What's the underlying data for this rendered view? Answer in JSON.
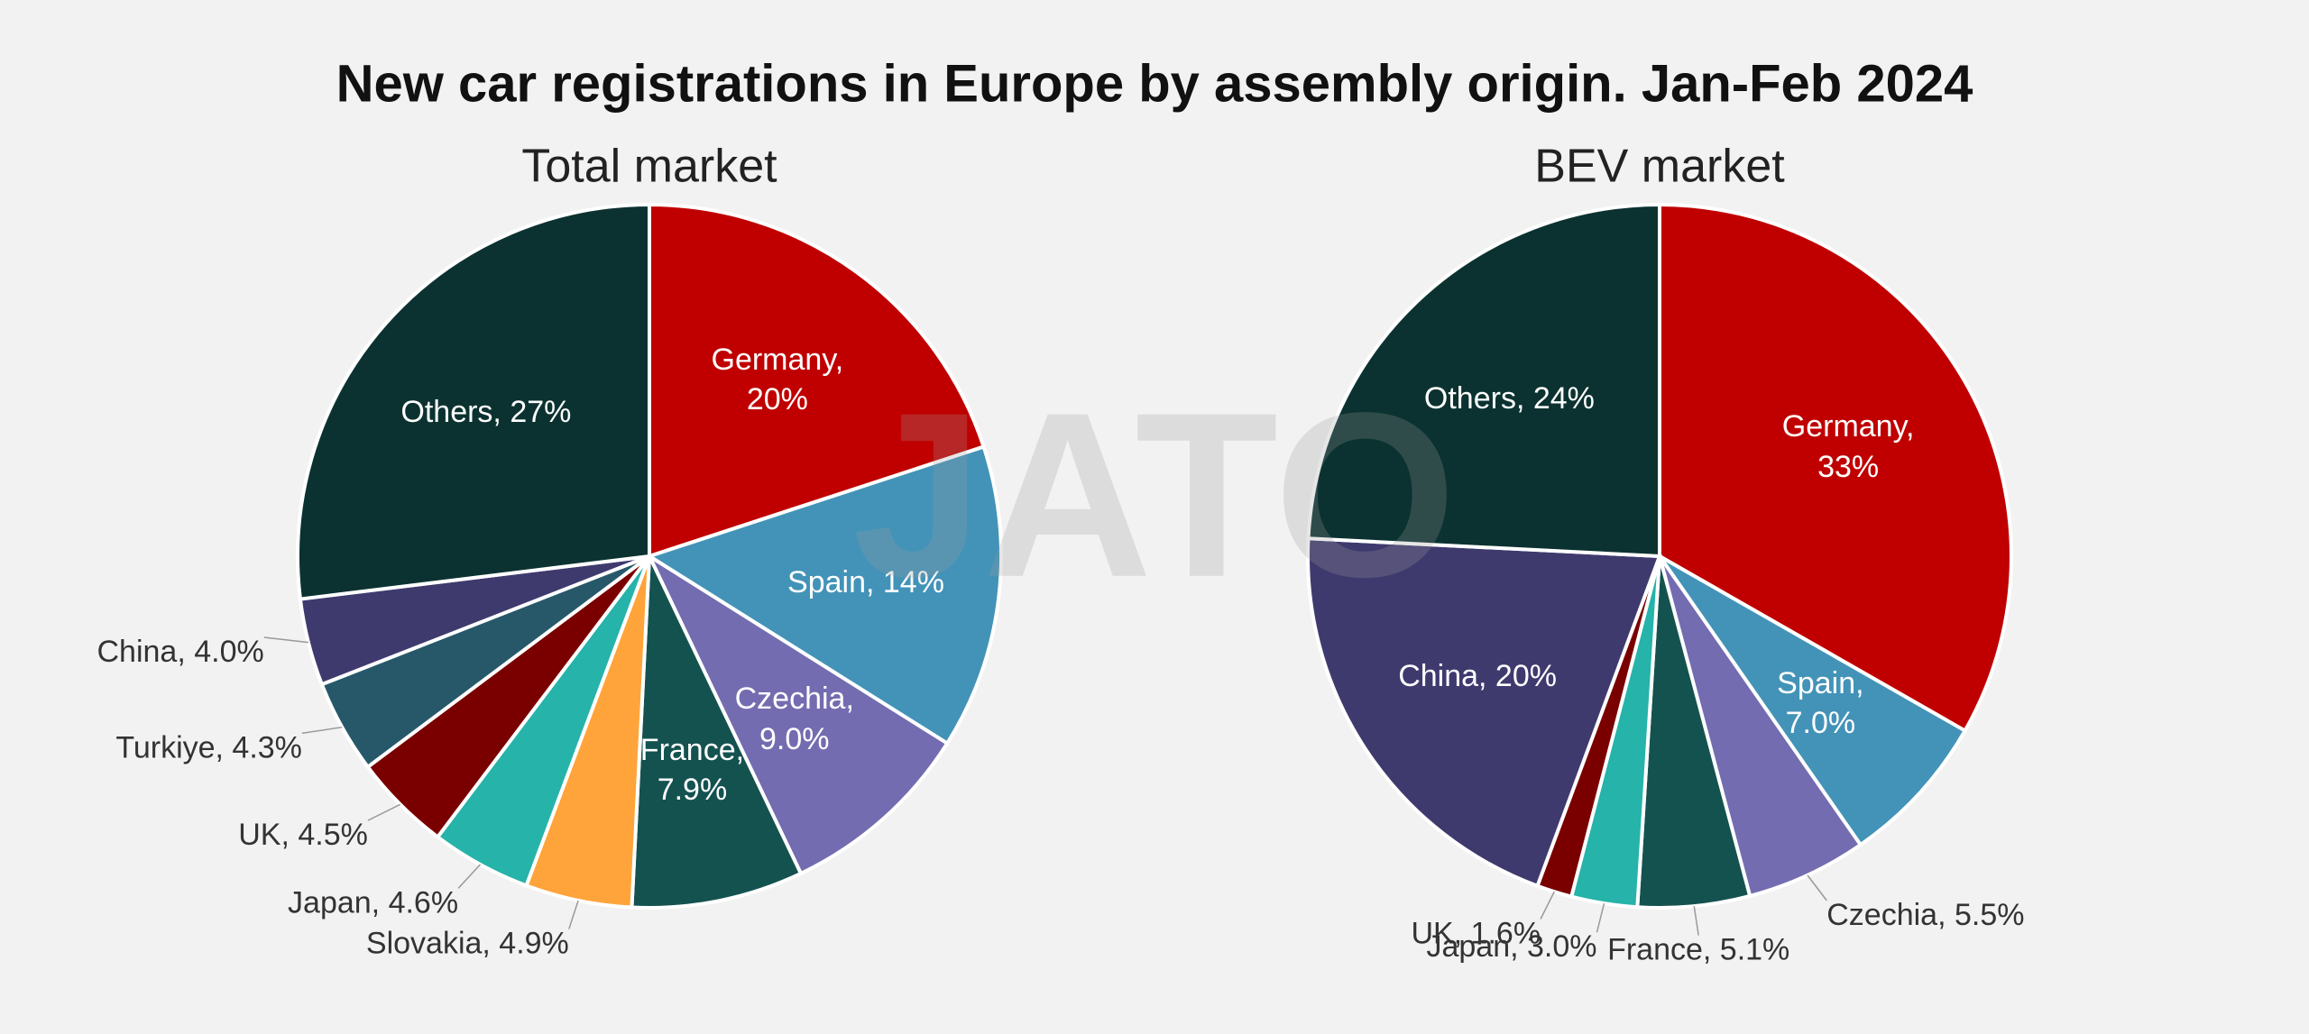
{
  "title": "New car registrations in Europe by assembly origin. Jan-Feb 2024",
  "watermark": "JATO",
  "chart_data": [
    {
      "type": "pie",
      "title": "Total market",
      "values": [
        20,
        14,
        9.0,
        7.9,
        4.9,
        4.6,
        4.5,
        4.3,
        4.0,
        27
      ],
      "value_labels": [
        "Germany, 20%",
        "Spain, 14%",
        "Czechia, 9.0%",
        "France, 7.9%",
        "Slovakia, 4.9%",
        "Japan, 4.6%",
        "UK, 4.5%",
        "Turkiye, 4.3%",
        "China, 4.0%",
        "Others, 27%"
      ],
      "colors": [
        "#c00000",
        "#4393b8",
        "#746cb0",
        "#145250",
        "#ffa43a",
        "#26b3a9",
        "#7a0000",
        "#275869",
        "#3f3a6e",
        "#0b3230"
      ]
    },
    {
      "type": "pie",
      "title": "BEV market",
      "values": [
        33,
        7.0,
        5.5,
        5.1,
        3.0,
        1.6,
        20,
        24
      ],
      "value_labels": [
        "Germany, 33%",
        "Spain, 7.0%",
        "Czechia, 5.5%",
        "France, 5.1%",
        "Japan, 3.0%",
        "UK, 1.6%",
        "China, 20%",
        "Others, 24%"
      ],
      "colors": [
        "#c00000",
        "#4393b8",
        "#746cb0",
        "#145250",
        "#26b3a9",
        "#7a0000",
        "#3f3a6e",
        "#0b3230"
      ]
    }
  ]
}
